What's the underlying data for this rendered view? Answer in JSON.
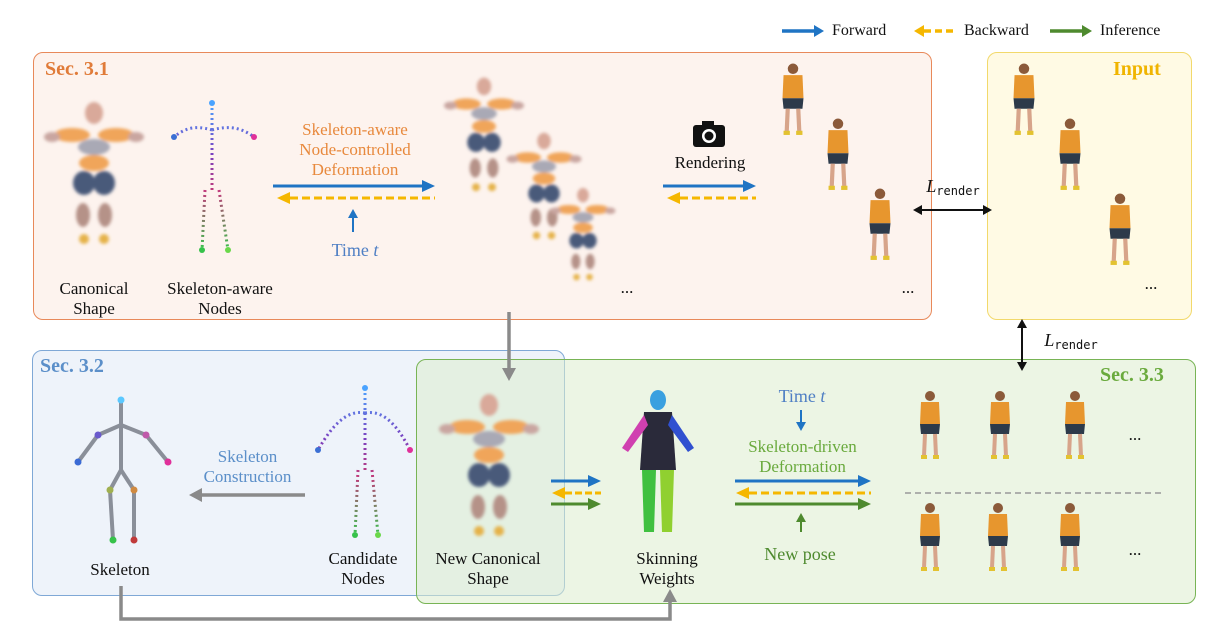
{
  "legend": {
    "forward": "Forward",
    "backward": "Backward",
    "inference": "Inference"
  },
  "colors": {
    "forward": "#1f74c4",
    "backward": "#f5b700",
    "inference": "#4e8a2e",
    "sec31_border": "#e8895a",
    "sec31_bg": "#fdf3ee",
    "sec31_title": "#e07b39",
    "sec32_border": "#7fa8d6",
    "sec32_bg": "#eef3fa",
    "sec32_title": "#5b8fc9",
    "sec33_border": "#78b455",
    "sec33_bg": "#eef5e6",
    "sec33_title": "#6aaa3d",
    "input_border": "#f2d96b",
    "input_bg": "#fffae4",
    "input_title": "#f0b400"
  },
  "sec31": {
    "title": "Sec. 3.1",
    "canonical_shape": [
      "Canonical",
      "Shape"
    ],
    "skeleton_nodes": [
      "Skeleton-aware",
      "Nodes"
    ],
    "deformation": [
      "Skeleton-aware",
      "Node-controlled",
      "Deformation"
    ],
    "time_label": "Time",
    "time_var": "t",
    "rendering": "Rendering",
    "ellipsis1": "...",
    "ellipsis2": "..."
  },
  "input": {
    "title": "Input",
    "ellipsis": "..."
  },
  "loss": {
    "symbol": "L",
    "subscript": "render"
  },
  "sec32": {
    "title": "Sec. 3.2",
    "construction": [
      "Skeleton",
      "Construction"
    ],
    "skeleton": "Skeleton",
    "candidate": [
      "Candidate",
      "Nodes"
    ]
  },
  "sec33": {
    "title": "Sec. 3.3",
    "new_canonical": [
      "New Canonical",
      "Shape"
    ],
    "skinning": [
      "Skinning",
      "Weights"
    ],
    "time_label": "Time",
    "time_var": "t",
    "deformation": [
      "Skeleton-driven",
      "Deformation"
    ],
    "new_pose": "New pose",
    "ellipsis1": "...",
    "ellipsis2": "..."
  }
}
